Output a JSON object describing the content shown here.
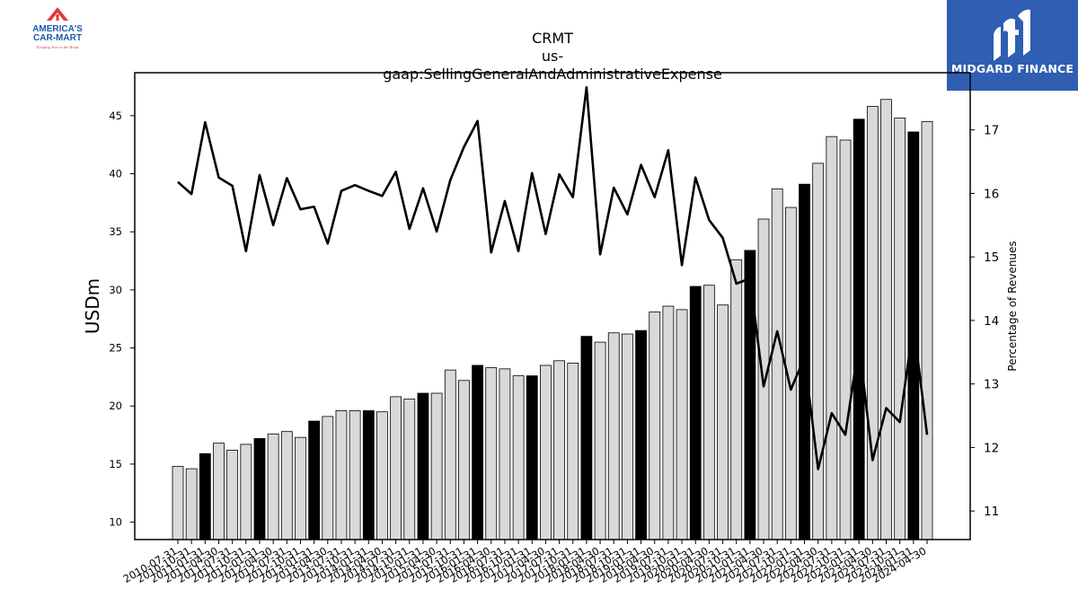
{
  "branding": {
    "left_logo": {
      "line1": "AMERICA'S",
      "line2": "CAR-MART",
      "tagline": "Keeping You on the Road",
      "colors": {
        "red": "#e03a3e",
        "blue": "#1f5aa8"
      }
    },
    "right_logo": {
      "name": "MIDGARD FINANCE",
      "background": "#2f5eb2"
    }
  },
  "chart_data": {
    "type": "bar",
    "title": "CRMT",
    "subtitle": "us-gaap:SellingGeneralAndAdministrativeExpense",
    "ylabel": "USDm",
    "y2label": "Percentage of Revenues",
    "ylim": [
      8.5,
      48.7
    ],
    "y2lim": [
      10.55,
      17.9
    ],
    "yticks": [
      10,
      15,
      20,
      25,
      30,
      35,
      40,
      45
    ],
    "y2ticks": [
      11,
      12,
      13,
      14,
      15,
      16,
      17
    ],
    "categories": [
      "2010-07-31",
      "2010-10-31",
      "2011-01-31",
      "2011-04-30",
      "2011-07-31",
      "2011-10-31",
      "2012-01-31",
      "2012-04-30",
      "2012-07-31",
      "2012-10-31",
      "2013-01-31",
      "2013-04-30",
      "2013-07-31",
      "2013-10-31",
      "2014-01-31",
      "2014-04-30",
      "2014-07-31",
      "2014-10-31",
      "2015-01-31",
      "2015-04-30",
      "2015-07-31",
      "2015-10-31",
      "2016-01-31",
      "2016-04-30",
      "2016-07-31",
      "2016-10-31",
      "2017-01-31",
      "2017-04-30",
      "2017-07-31",
      "2017-10-31",
      "2018-01-31",
      "2018-04-30",
      "2018-07-31",
      "2018-10-31",
      "2019-01-31",
      "2019-04-30",
      "2019-07-31",
      "2019-10-31",
      "2020-01-31",
      "2020-04-30",
      "2020-07-31",
      "2020-10-31",
      "2021-01-31",
      "2021-04-30",
      "2021-07-31",
      "2021-10-31",
      "2022-01-31",
      "2022-04-30",
      "2022-07-31",
      "2022-10-31",
      "2023-01-31",
      "2023-04-30",
      "2023-07-31",
      "2023-10-31",
      "2024-01-31",
      "2024-04-30"
    ],
    "values": [
      14.8,
      14.6,
      15.9,
      16.8,
      16.2,
      16.7,
      17.2,
      17.6,
      17.8,
      17.3,
      18.7,
      19.1,
      19.6,
      19.6,
      19.6,
      19.5,
      20.8,
      20.6,
      21.1,
      21.1,
      23.1,
      22.2,
      23.5,
      23.3,
      23.2,
      22.6,
      22.6,
      23.5,
      23.9,
      23.7,
      26.0,
      25.5,
      26.3,
      26.2,
      26.5,
      28.1,
      28.6,
      28.3,
      30.3,
      30.4,
      28.7,
      32.6,
      33.4,
      36.1,
      38.7,
      37.1,
      39.1,
      40.9,
      43.2,
      42.9,
      44.7,
      45.8,
      46.4,
      44.8,
      43.6,
      44.5
    ],
    "highlighted_bars": [
      2,
      6,
      10,
      14,
      18,
      22,
      26,
      30,
      34,
      38,
      42,
      46,
      50,
      54
    ],
    "line_series": {
      "name": "Percentage of Revenues",
      "axis": "right",
      "values": [
        16.18,
        15.99,
        17.12,
        16.25,
        16.12,
        15.09,
        16.29,
        15.5,
        16.24,
        15.75,
        15.79,
        15.21,
        16.04,
        16.13,
        16.04,
        15.96,
        16.34,
        15.44,
        16.08,
        15.4,
        16.21,
        16.73,
        17.14,
        15.07,
        15.88,
        15.09,
        16.32,
        15.36,
        16.3,
        15.94,
        17.67,
        15.04,
        16.09,
        15.67,
        16.45,
        15.94,
        16.68,
        14.87,
        16.25,
        15.58,
        15.3,
        14.58,
        14.66,
        12.96,
        13.83,
        12.91,
        13.42,
        11.66,
        12.54,
        12.2,
        13.64,
        11.8,
        12.62,
        12.4,
        13.94,
        12.2
      ]
    },
    "colors": {
      "bar": "#d9d9d9",
      "bar_highlight": "#000000",
      "bar_edge": "#000000",
      "line": "#000000"
    },
    "grid": false,
    "legend": "none"
  }
}
